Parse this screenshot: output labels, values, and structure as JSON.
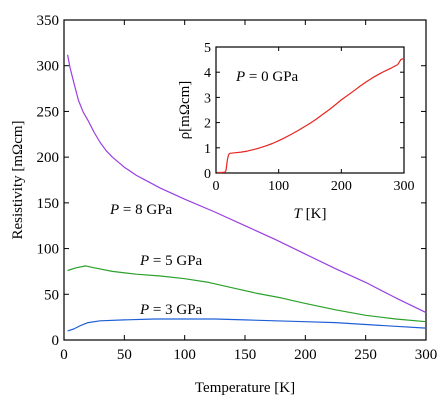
{
  "chart_data": [
    {
      "type": "line",
      "xlabel": "Temperature [K]",
      "ylabel": "Resistivity [mΩcm]",
      "xlim": [
        0,
        300
      ],
      "ylim": [
        0,
        350
      ],
      "x_ticks": [
        "0",
        "50",
        "100",
        "150",
        "200",
        "250",
        "300"
      ],
      "y_ticks": [
        "0",
        "50",
        "100",
        "150",
        "200",
        "250",
        "300",
        "350"
      ],
      "grid": false,
      "series": [
        {
          "name": "P = 8 GPa",
          "label_parts": [
            "P",
            " = 8 GPa"
          ],
          "color": "#9b3fe0",
          "points": [
            [
              3,
              312
            ],
            [
              5,
              298
            ],
            [
              8,
              282
            ],
            [
              12,
              262
            ],
            [
              16,
              249
            ],
            [
              20,
              240
            ],
            [
              25,
              227
            ],
            [
              30,
              216
            ],
            [
              35,
              207
            ],
            [
              40,
              200
            ],
            [
              50,
              189
            ],
            [
              60,
              180
            ],
            [
              70,
              173
            ],
            [
              80,
              166
            ],
            [
              90,
              160
            ],
            [
              100,
              154
            ],
            [
              125,
              140
            ],
            [
              150,
              125
            ],
            [
              175,
              110
            ],
            [
              200,
              94
            ],
            [
              225,
              78
            ],
            [
              250,
              63
            ],
            [
              275,
              46
            ],
            [
              300,
              30
            ]
          ]
        },
        {
          "name": "P = 5 GPa",
          "label_parts": [
            "P",
            " = 5 GPa"
          ],
          "color": "#2ca02c",
          "points": [
            [
              3,
              76
            ],
            [
              10,
              79
            ],
            [
              18,
              81
            ],
            [
              25,
              79
            ],
            [
              40,
              75
            ],
            [
              60,
              72
            ],
            [
              80,
              70
            ],
            [
              100,
              67
            ],
            [
              120,
              63
            ],
            [
              140,
              57
            ],
            [
              160,
              51
            ],
            [
              180,
              46
            ],
            [
              200,
              40
            ],
            [
              225,
              33
            ],
            [
              250,
              27
            ],
            [
              275,
              23
            ],
            [
              300,
              20
            ]
          ]
        },
        {
          "name": "P = 3 GPa",
          "label_parts": [
            "P",
            " = 3 GPa"
          ],
          "color": "#1f5fd6",
          "points": [
            [
              3,
              10
            ],
            [
              8,
              12
            ],
            [
              14,
              16
            ],
            [
              20,
              19
            ],
            [
              30,
              21
            ],
            [
              50,
              22
            ],
            [
              75,
              23
            ],
            [
              100,
              23
            ],
            [
              125,
              23
            ],
            [
              150,
              22
            ],
            [
              175,
              21
            ],
            [
              200,
              20
            ],
            [
              225,
              19
            ],
            [
              250,
              17
            ],
            [
              275,
              15
            ],
            [
              300,
              13
            ]
          ]
        }
      ]
    },
    {
      "type": "line",
      "xlabel_parts": [
        "T",
        " [K]"
      ],
      "ylabel": "ρ[mΩcm]",
      "xlim": [
        0,
        300
      ],
      "ylim": [
        0,
        5
      ],
      "x_ticks": [
        "0",
        "100",
        "200",
        "300"
      ],
      "y_ticks": [
        "0",
        "1",
        "2",
        "3",
        "4",
        "5"
      ],
      "grid": false,
      "series": [
        {
          "name": "P = 0 GPa",
          "label_parts": [
            "P",
            " = 0 GPa"
          ],
          "color": "#e8251f",
          "points": [
            [
              2,
              0.02
            ],
            [
              8,
              0.02
            ],
            [
              14,
              0.03
            ],
            [
              16,
              0.1
            ],
            [
              18,
              0.5
            ],
            [
              20,
              0.72
            ],
            [
              22,
              0.78
            ],
            [
              30,
              0.8
            ],
            [
              40,
              0.83
            ],
            [
              50,
              0.87
            ],
            [
              60,
              0.93
            ],
            [
              70,
              1.0
            ],
            [
              80,
              1.08
            ],
            [
              90,
              1.17
            ],
            [
              100,
              1.28
            ],
            [
              110,
              1.4
            ],
            [
              120,
              1.53
            ],
            [
              130,
              1.67
            ],
            [
              140,
              1.82
            ],
            [
              150,
              1.97
            ],
            [
              160,
              2.14
            ],
            [
              170,
              2.32
            ],
            [
              180,
              2.5
            ],
            [
              190,
              2.7
            ],
            [
              200,
              2.9
            ],
            [
              210,
              3.08
            ],
            [
              220,
              3.26
            ],
            [
              230,
              3.45
            ],
            [
              240,
              3.62
            ],
            [
              250,
              3.78
            ],
            [
              260,
              3.92
            ],
            [
              270,
              4.05
            ],
            [
              280,
              4.17
            ],
            [
              290,
              4.3
            ],
            [
              295,
              4.5
            ],
            [
              300,
              4.55
            ]
          ]
        }
      ]
    }
  ]
}
